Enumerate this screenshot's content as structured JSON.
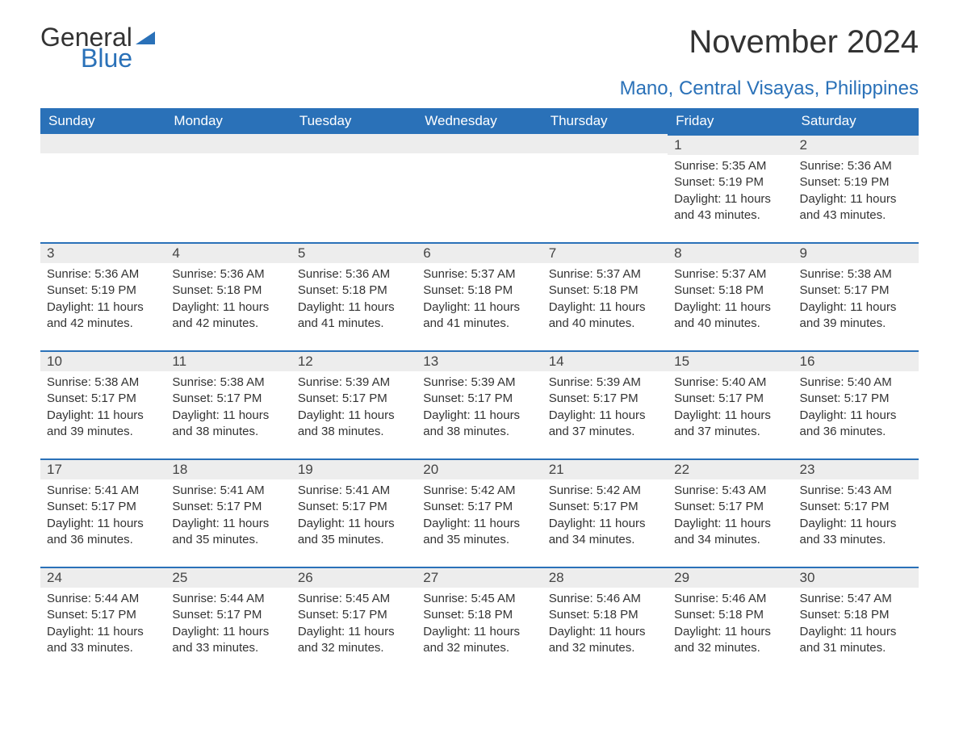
{
  "logo": {
    "word1": "General",
    "word2": "Blue"
  },
  "title": "November 2024",
  "subtitle": "Mano, Central Visayas, Philippines",
  "colors": {
    "header_bg": "#2a71b8",
    "header_text": "#ffffff",
    "daynum_bg": "#ededed",
    "accent_line": "#2a71b8",
    "page_bg": "#ffffff",
    "text": "#333333"
  },
  "day_names": [
    "Sunday",
    "Monday",
    "Tuesday",
    "Wednesday",
    "Thursday",
    "Friday",
    "Saturday"
  ],
  "weeks": [
    [
      null,
      null,
      null,
      null,
      null,
      {
        "n": "1",
        "sunrise": "5:35 AM",
        "sunset": "5:19 PM",
        "daylight": "11 hours and 43 minutes."
      },
      {
        "n": "2",
        "sunrise": "5:36 AM",
        "sunset": "5:19 PM",
        "daylight": "11 hours and 43 minutes."
      }
    ],
    [
      {
        "n": "3",
        "sunrise": "5:36 AM",
        "sunset": "5:19 PM",
        "daylight": "11 hours and 42 minutes."
      },
      {
        "n": "4",
        "sunrise": "5:36 AM",
        "sunset": "5:18 PM",
        "daylight": "11 hours and 42 minutes."
      },
      {
        "n": "5",
        "sunrise": "5:36 AM",
        "sunset": "5:18 PM",
        "daylight": "11 hours and 41 minutes."
      },
      {
        "n": "6",
        "sunrise": "5:37 AM",
        "sunset": "5:18 PM",
        "daylight": "11 hours and 41 minutes."
      },
      {
        "n": "7",
        "sunrise": "5:37 AM",
        "sunset": "5:18 PM",
        "daylight": "11 hours and 40 minutes."
      },
      {
        "n": "8",
        "sunrise": "5:37 AM",
        "sunset": "5:18 PM",
        "daylight": "11 hours and 40 minutes."
      },
      {
        "n": "9",
        "sunrise": "5:38 AM",
        "sunset": "5:17 PM",
        "daylight": "11 hours and 39 minutes."
      }
    ],
    [
      {
        "n": "10",
        "sunrise": "5:38 AM",
        "sunset": "5:17 PM",
        "daylight": "11 hours and 39 minutes."
      },
      {
        "n": "11",
        "sunrise": "5:38 AM",
        "sunset": "5:17 PM",
        "daylight": "11 hours and 38 minutes."
      },
      {
        "n": "12",
        "sunrise": "5:39 AM",
        "sunset": "5:17 PM",
        "daylight": "11 hours and 38 minutes."
      },
      {
        "n": "13",
        "sunrise": "5:39 AM",
        "sunset": "5:17 PM",
        "daylight": "11 hours and 38 minutes."
      },
      {
        "n": "14",
        "sunrise": "5:39 AM",
        "sunset": "5:17 PM",
        "daylight": "11 hours and 37 minutes."
      },
      {
        "n": "15",
        "sunrise": "5:40 AM",
        "sunset": "5:17 PM",
        "daylight": "11 hours and 37 minutes."
      },
      {
        "n": "16",
        "sunrise": "5:40 AM",
        "sunset": "5:17 PM",
        "daylight": "11 hours and 36 minutes."
      }
    ],
    [
      {
        "n": "17",
        "sunrise": "5:41 AM",
        "sunset": "5:17 PM",
        "daylight": "11 hours and 36 minutes."
      },
      {
        "n": "18",
        "sunrise": "5:41 AM",
        "sunset": "5:17 PM",
        "daylight": "11 hours and 35 minutes."
      },
      {
        "n": "19",
        "sunrise": "5:41 AM",
        "sunset": "5:17 PM",
        "daylight": "11 hours and 35 minutes."
      },
      {
        "n": "20",
        "sunrise": "5:42 AM",
        "sunset": "5:17 PM",
        "daylight": "11 hours and 35 minutes."
      },
      {
        "n": "21",
        "sunrise": "5:42 AM",
        "sunset": "5:17 PM",
        "daylight": "11 hours and 34 minutes."
      },
      {
        "n": "22",
        "sunrise": "5:43 AM",
        "sunset": "5:17 PM",
        "daylight": "11 hours and 34 minutes."
      },
      {
        "n": "23",
        "sunrise": "5:43 AM",
        "sunset": "5:17 PM",
        "daylight": "11 hours and 33 minutes."
      }
    ],
    [
      {
        "n": "24",
        "sunrise": "5:44 AM",
        "sunset": "5:17 PM",
        "daylight": "11 hours and 33 minutes."
      },
      {
        "n": "25",
        "sunrise": "5:44 AM",
        "sunset": "5:17 PM",
        "daylight": "11 hours and 33 minutes."
      },
      {
        "n": "26",
        "sunrise": "5:45 AM",
        "sunset": "5:17 PM",
        "daylight": "11 hours and 32 minutes."
      },
      {
        "n": "27",
        "sunrise": "5:45 AM",
        "sunset": "5:18 PM",
        "daylight": "11 hours and 32 minutes."
      },
      {
        "n": "28",
        "sunrise": "5:46 AM",
        "sunset": "5:18 PM",
        "daylight": "11 hours and 32 minutes."
      },
      {
        "n": "29",
        "sunrise": "5:46 AM",
        "sunset": "5:18 PM",
        "daylight": "11 hours and 32 minutes."
      },
      {
        "n": "30",
        "sunrise": "5:47 AM",
        "sunset": "5:18 PM",
        "daylight": "11 hours and 31 minutes."
      }
    ]
  ],
  "labels": {
    "sunrise": "Sunrise:",
    "sunset": "Sunset:",
    "daylight": "Daylight:"
  }
}
